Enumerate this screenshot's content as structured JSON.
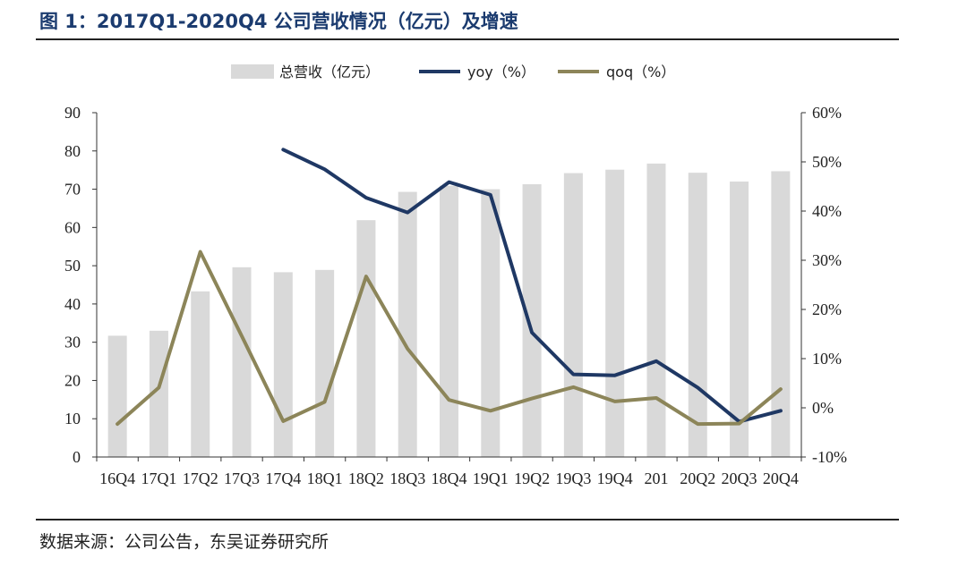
{
  "header": {
    "title": "图 1：2017Q1-2020Q4 公司营收情况（亿元）及增速"
  },
  "footer": {
    "source": "数据来源：公司公告，东吴证券研究所"
  },
  "colors": {
    "bar": "#d9d9d9",
    "yoy": "#1f3864",
    "qoq": "#8c8559"
  },
  "chart_data": {
    "type": "bar",
    "title": "2017Q1-2020Q4 公司营收情况（亿元）及增速",
    "categories": [
      "16Q4",
      "17Q1",
      "17Q2",
      "17Q3",
      "17Q4",
      "18Q1",
      "18Q2",
      "18Q3",
      "18Q4",
      "19Q1",
      "19Q2",
      "19Q3",
      "19Q4",
      "201",
      "20Q2",
      "20Q3",
      "20Q4"
    ],
    "series": [
      {
        "name": "总营收（亿元）",
        "kind": "bar",
        "axis": "left",
        "values": [
          31.7,
          33,
          43.3,
          49.6,
          48.3,
          48.9,
          61.9,
          69.3,
          70.9,
          70,
          71.3,
          74.2,
          75.1,
          76.7,
          74.3,
          72,
          74.7
        ]
      },
      {
        "name": "yoy（%）",
        "kind": "line",
        "axis": "right",
        "values": [
          null,
          null,
          null,
          null,
          52.5,
          48.5,
          42.7,
          39.7,
          45.9,
          43.3,
          15.3,
          6.8,
          6.6,
          9.5,
          4.1,
          -2.8,
          -0.6
        ]
      },
      {
        "name": "qoq（%）",
        "kind": "line",
        "axis": "right",
        "values": [
          -3.3,
          4.1,
          31.7,
          14.6,
          -2.7,
          1.2,
          26.7,
          12,
          1.6,
          -0.6,
          1.9,
          4.2,
          1.3,
          2,
          -3.3,
          -3.2,
          3.8
        ]
      }
    ],
    "y_left": {
      "min": 0,
      "max": 90,
      "ticks": [
        "0",
        "10",
        "20",
        "30",
        "40",
        "50",
        "60",
        "70",
        "80",
        "90"
      ]
    },
    "y_right": {
      "min": -10,
      "max": 60,
      "ticks": [
        "-10%",
        "0%",
        "10%",
        "20%",
        "30%",
        "40%",
        "50%",
        "60%"
      ]
    },
    "legend_position": "top-center"
  }
}
